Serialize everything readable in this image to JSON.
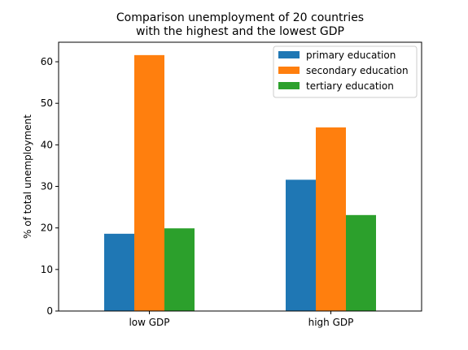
{
  "chart_data": {
    "type": "bar",
    "title": "Comparison unemployment of 20 countries\nwith the highest and the lowest GDP",
    "xlabel": "",
    "ylabel": "% of total unemployment",
    "categories": [
      "low GDP",
      "high GDP"
    ],
    "series": [
      {
        "name": "primary education",
        "values": [
          18.6,
          31.6
        ],
        "color": "#1f77b4"
      },
      {
        "name": "secondary education",
        "values": [
          61.6,
          44.2
        ],
        "color": "#ff7f0e"
      },
      {
        "name": "tertiary education",
        "values": [
          19.9,
          23.1
        ],
        "color": "#2ca02c"
      }
    ],
    "ylim": [
      0,
      64.7
    ],
    "yticks": [
      0,
      10,
      20,
      30,
      40,
      50,
      60
    ],
    "grid": false,
    "legend_position": "top-right"
  }
}
